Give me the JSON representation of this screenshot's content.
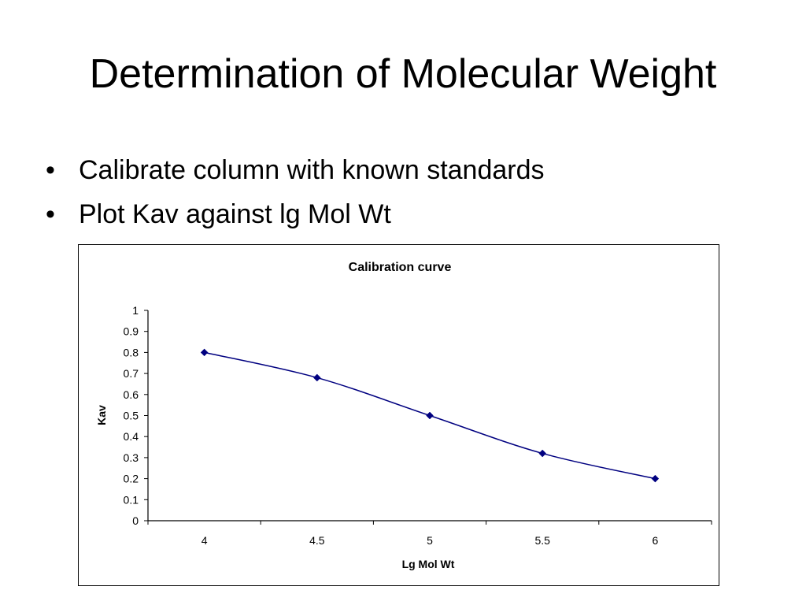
{
  "slide": {
    "title": "Determination of Molecular Weight",
    "bullets": [
      "Calibrate column with known standards",
      "Plot Kav against lg Mol Wt"
    ]
  },
  "chart_data": {
    "type": "line",
    "title": "Calibration curve",
    "xlabel": "Lg Mol Wt",
    "ylabel": "Kav",
    "categories": [
      "4",
      "4.5",
      "5",
      "5.5",
      "6"
    ],
    "series": [
      {
        "values": [
          0.8,
          0.68,
          0.5,
          0.32,
          0.2
        ]
      }
    ],
    "ylim": [
      0,
      1
    ],
    "yticks": [
      "0",
      "0.1",
      "0.2",
      "0.3",
      "0.4",
      "0.5",
      "0.6",
      "0.7",
      "0.8",
      "0.9",
      "1"
    ],
    "grid": false,
    "legend": "none",
    "smooth": true,
    "marker": "diamond",
    "line_color": "#000080"
  }
}
